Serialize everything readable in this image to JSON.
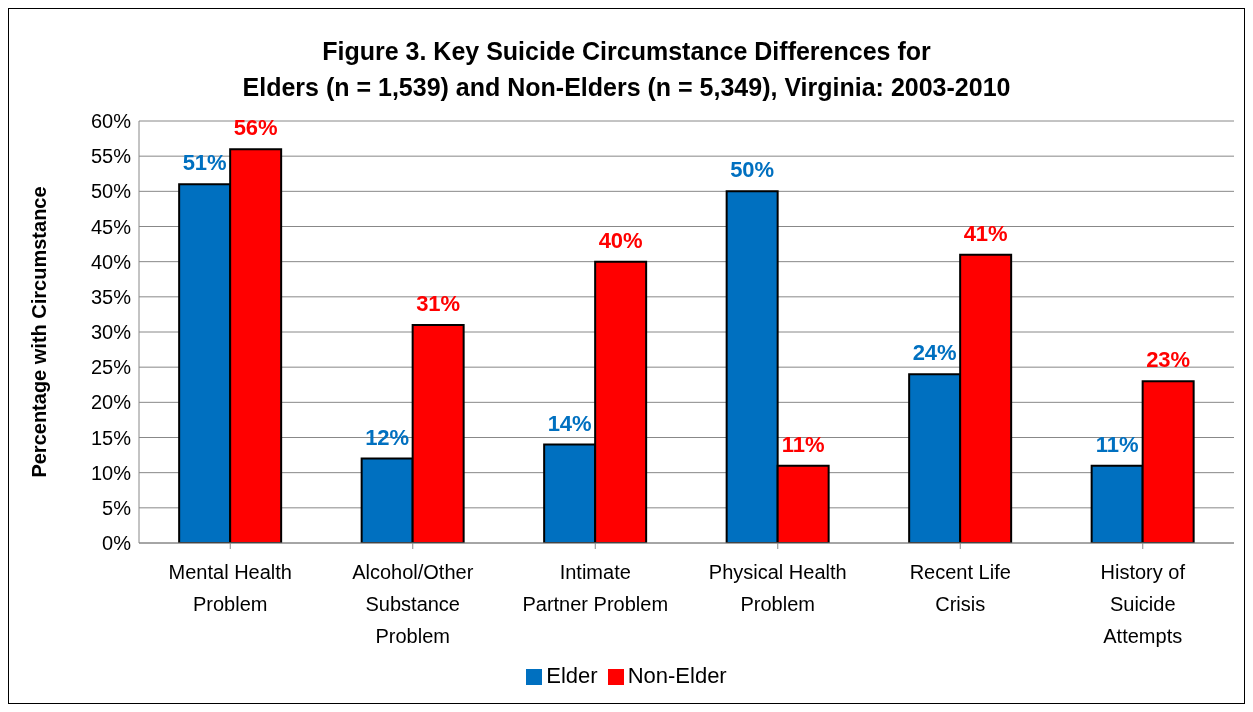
{
  "chart_data": {
    "type": "bar",
    "title": "Figure 3. Key Suicide Circumstance Differences for\nElders (n = 1,539) and Non-Elders (n = 5,349), Virginia: 2003-2010",
    "ylabel": "Percentage with Circumstance",
    "categories": [
      "Mental Health Problem",
      "Alcohol/Other Substance Problem",
      "Intimate Partner Problem",
      "Physical Health Problem",
      "Recent Life Crisis",
      "History of Suicide Attempts"
    ],
    "series": [
      {
        "name": "Elder",
        "color": "#0070c0",
        "values": [
          51,
          12,
          14,
          50,
          24,
          11
        ],
        "value_labels": [
          "51%",
          "12%",
          "14%",
          "50%",
          "24%",
          "11%"
        ]
      },
      {
        "name": "Non-Elder",
        "color": "#ff0000",
        "values": [
          56,
          31,
          40,
          11,
          41,
          23
        ],
        "value_labels": [
          "56%",
          "31%",
          "40%",
          "11%",
          "41%",
          "23%"
        ]
      }
    ],
    "ylim": [
      0,
      60
    ],
    "yticks": [
      {
        "value": 0,
        "label": "0%"
      },
      {
        "value": 5,
        "label": "5%"
      },
      {
        "value": 10,
        "label": "10%"
      },
      {
        "value": 15,
        "label": "15%"
      },
      {
        "value": 20,
        "label": "20%"
      },
      {
        "value": 25,
        "label": "25%"
      },
      {
        "value": 30,
        "label": "30%"
      },
      {
        "value": 35,
        "label": "35%"
      },
      {
        "value": 40,
        "label": "40%"
      },
      {
        "value": 45,
        "label": "45%"
      },
      {
        "value": 50,
        "label": "50%"
      },
      {
        "value": 55,
        "label": "55%"
      },
      {
        "value": 60,
        "label": "60%"
      }
    ],
    "grid": "y",
    "legend": "bottom"
  }
}
